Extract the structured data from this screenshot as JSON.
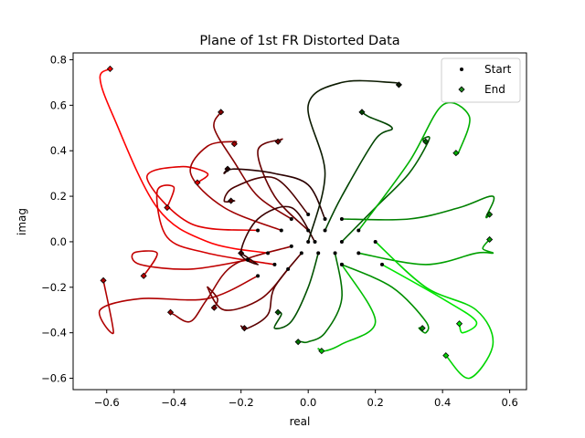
{
  "chart_data": {
    "type": "line",
    "title": "Plane of 1st FR Distorted Data",
    "xlabel": "real",
    "ylabel": "imag",
    "xlim": [
      -0.7,
      0.65
    ],
    "ylim": [
      -0.65,
      0.83
    ],
    "xticks": [
      -0.6,
      -0.4,
      -0.2,
      0.0,
      0.2,
      0.4,
      0.6
    ],
    "yticks": [
      -0.6,
      -0.4,
      -0.2,
      0.0,
      0.2,
      0.4,
      0.6,
      0.8
    ],
    "legend": {
      "placement": "upper-right",
      "entries": [
        {
          "label": "Start",
          "marker": "dot",
          "color": "#000000"
        },
        {
          "label": "End",
          "marker": "diamond",
          "color": "#228b22"
        }
      ]
    },
    "series": [
      {
        "color": "#ff0000",
        "points": [
          [
            -0.12,
            -0.05
          ],
          [
            -0.3,
            0.0
          ],
          [
            -0.45,
            0.15
          ],
          [
            -0.58,
            0.55
          ],
          [
            -0.62,
            0.72
          ],
          [
            -0.59,
            0.76
          ]
        ]
      },
      {
        "color": "#e00000",
        "points": [
          [
            -0.15,
            0.05
          ],
          [
            -0.35,
            0.08
          ],
          [
            -0.48,
            0.28
          ],
          [
            -0.38,
            0.33
          ],
          [
            -0.3,
            0.3
          ],
          [
            -0.33,
            0.26
          ]
        ]
      },
      {
        "color": "#d40000",
        "points": [
          [
            -0.1,
            -0.1
          ],
          [
            -0.3,
            -0.05
          ],
          [
            -0.42,
            0.02
          ],
          [
            -0.45,
            0.22
          ],
          [
            -0.4,
            0.24
          ],
          [
            -0.42,
            0.15
          ]
        ]
      },
      {
        "color": "#c00000",
        "points": [
          [
            -0.18,
            -0.08
          ],
          [
            -0.35,
            -0.12
          ],
          [
            -0.5,
            -0.1
          ],
          [
            -0.52,
            -0.05
          ],
          [
            -0.45,
            -0.05
          ],
          [
            -0.49,
            -0.15
          ]
        ]
      },
      {
        "color": "#b00000",
        "points": [
          [
            -0.15,
            -0.15
          ],
          [
            -0.3,
            -0.25
          ],
          [
            -0.5,
            -0.25
          ],
          [
            -0.62,
            -0.3
          ],
          [
            -0.58,
            -0.4
          ],
          [
            -0.61,
            -0.17
          ]
        ]
      },
      {
        "color": "#a00000",
        "points": [
          [
            -0.08,
            0.05
          ],
          [
            -0.25,
            0.15
          ],
          [
            -0.35,
            0.3
          ],
          [
            -0.3,
            0.42
          ],
          [
            -0.22,
            0.44
          ],
          [
            -0.22,
            0.43
          ]
        ]
      },
      {
        "color": "#920000",
        "points": [
          [
            -0.05,
            -0.02
          ],
          [
            -0.22,
            -0.1
          ],
          [
            -0.3,
            -0.25
          ],
          [
            -0.35,
            -0.35
          ],
          [
            -0.4,
            -0.32
          ],
          [
            -0.41,
            -0.31
          ]
        ]
      },
      {
        "color": "#840000",
        "points": [
          [
            -0.05,
            0.1
          ],
          [
            -0.15,
            0.2
          ],
          [
            -0.22,
            0.35
          ],
          [
            -0.28,
            0.5
          ],
          [
            -0.26,
            0.57
          ],
          [
            -0.26,
            0.57
          ]
        ]
      },
      {
        "color": "#760000",
        "points": [
          [
            -0.06,
            -0.12
          ],
          [
            -0.14,
            -0.25
          ],
          [
            -0.25,
            -0.3
          ],
          [
            -0.3,
            -0.2
          ],
          [
            -0.27,
            -0.25
          ],
          [
            -0.28,
            -0.29
          ]
        ]
      },
      {
        "color": "#680000",
        "points": [
          [
            0.0,
            0.05
          ],
          [
            -0.1,
            0.2
          ],
          [
            -0.15,
            0.4
          ],
          [
            -0.08,
            0.45
          ],
          [
            -0.09,
            0.44
          ],
          [
            -0.09,
            0.44
          ]
        ]
      },
      {
        "color": "#5a0000",
        "points": [
          [
            -0.02,
            -0.05
          ],
          [
            -0.1,
            -0.2
          ],
          [
            -0.12,
            -0.32
          ],
          [
            -0.18,
            -0.38
          ],
          [
            -0.2,
            -0.37
          ],
          [
            -0.19,
            -0.38
          ]
        ]
      },
      {
        "color": "#4c0000",
        "points": [
          [
            0.0,
            0.12
          ],
          [
            -0.1,
            0.28
          ],
          [
            -0.22,
            0.24
          ],
          [
            -0.25,
            0.18
          ],
          [
            -0.22,
            0.18
          ],
          [
            -0.23,
            0.18
          ]
        ]
      },
      {
        "color": "#3a0000",
        "points": [
          [
            0.02,
            0.0
          ],
          [
            -0.05,
            0.15
          ],
          [
            -0.15,
            0.1
          ],
          [
            -0.2,
            -0.05
          ],
          [
            -0.15,
            -0.1
          ],
          [
            -0.2,
            -0.05
          ]
        ]
      },
      {
        "color": "#2a0000",
        "points": [
          [
            0.05,
            0.1
          ],
          [
            0.0,
            0.25
          ],
          [
            -0.1,
            0.3
          ],
          [
            -0.22,
            0.32
          ],
          [
            -0.25,
            0.3
          ],
          [
            -0.24,
            0.32
          ]
        ]
      },
      {
        "color": "#0b1a00",
        "points": [
          [
            0.0,
            0.0
          ],
          [
            0.05,
            0.3
          ],
          [
            0.0,
            0.6
          ],
          [
            0.1,
            0.7
          ],
          [
            0.25,
            0.7
          ],
          [
            0.27,
            0.69
          ]
        ]
      },
      {
        "color": "#004400",
        "points": [
          [
            0.05,
            0.05
          ],
          [
            0.1,
            0.2
          ],
          [
            0.2,
            0.45
          ],
          [
            0.25,
            0.5
          ],
          [
            0.18,
            0.55
          ],
          [
            0.16,
            0.57
          ]
        ]
      },
      {
        "color": "#005200",
        "points": [
          [
            0.03,
            -0.05
          ],
          [
            0.0,
            -0.2
          ],
          [
            -0.05,
            -0.35
          ],
          [
            -0.1,
            -0.38
          ],
          [
            -0.08,
            -0.32
          ],
          [
            -0.09,
            -0.31
          ]
        ]
      },
      {
        "color": "#006000",
        "points": [
          [
            0.1,
            0.0
          ],
          [
            0.2,
            0.15
          ],
          [
            0.3,
            0.3
          ],
          [
            0.36,
            0.45
          ],
          [
            0.34,
            0.45
          ],
          [
            0.35,
            0.44
          ]
        ]
      },
      {
        "color": "#007000",
        "points": [
          [
            0.08,
            -0.05
          ],
          [
            0.1,
            -0.25
          ],
          [
            0.05,
            -0.4
          ],
          [
            0.0,
            -0.44
          ],
          [
            -0.02,
            -0.44
          ],
          [
            -0.03,
            -0.44
          ]
        ]
      },
      {
        "color": "#008000",
        "points": [
          [
            0.1,
            0.1
          ],
          [
            0.3,
            0.1
          ],
          [
            0.45,
            0.15
          ],
          [
            0.55,
            0.2
          ],
          [
            0.53,
            0.11
          ],
          [
            0.54,
            0.12
          ]
        ]
      },
      {
        "color": "#009000",
        "points": [
          [
            0.1,
            -0.1
          ],
          [
            0.25,
            -0.2
          ],
          [
            0.35,
            -0.35
          ],
          [
            0.35,
            -0.4
          ],
          [
            0.33,
            -0.38
          ],
          [
            0.34,
            -0.38
          ]
        ]
      },
      {
        "color": "#00a000",
        "points": [
          [
            0.15,
            -0.05
          ],
          [
            0.35,
            -0.1
          ],
          [
            0.5,
            -0.05
          ],
          [
            0.55,
            -0.05
          ],
          [
            0.52,
            -0.03
          ],
          [
            0.54,
            0.01
          ]
        ]
      },
      {
        "color": "#00b000",
        "points": [
          [
            0.15,
            0.05
          ],
          [
            0.3,
            0.35
          ],
          [
            0.4,
            0.6
          ],
          [
            0.48,
            0.55
          ],
          [
            0.45,
            0.4
          ],
          [
            0.44,
            0.39
          ]
        ]
      },
      {
        "color": "#00c000",
        "points": [
          [
            0.1,
            -0.1
          ],
          [
            0.2,
            -0.35
          ],
          [
            0.1,
            -0.45
          ],
          [
            0.05,
            -0.48
          ],
          [
            0.03,
            -0.47
          ],
          [
            0.04,
            -0.48
          ]
        ]
      },
      {
        "color": "#00d500",
        "points": [
          [
            0.2,
            0.0
          ],
          [
            0.35,
            -0.2
          ],
          [
            0.5,
            -0.3
          ],
          [
            0.55,
            -0.45
          ],
          [
            0.48,
            -0.6
          ],
          [
            0.41,
            -0.5
          ]
        ]
      },
      {
        "color": "#00e800",
        "points": [
          [
            0.22,
            -0.1
          ],
          [
            0.4,
            -0.25
          ],
          [
            0.5,
            -0.35
          ],
          [
            0.46,
            -0.4
          ],
          [
            0.45,
            -0.36
          ],
          [
            0.45,
            -0.36
          ]
        ]
      }
    ]
  }
}
